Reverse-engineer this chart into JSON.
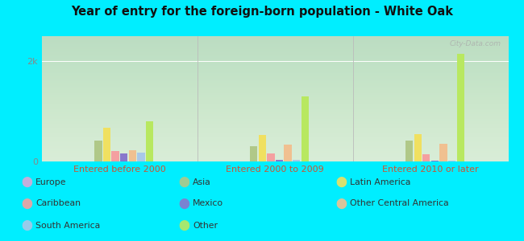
{
  "title": "Year of entry for the foreign-born population - White Oak",
  "background_color": "#00EEFF",
  "plot_bg": "#ddeedd",
  "groups": [
    "Entered before 2000",
    "Entered 2000 to 2009",
    "Entered 2010 or later"
  ],
  "cat_order": [
    "Europe",
    "Asia",
    "Latin America",
    "Caribbean",
    "Mexico",
    "Other Central America",
    "South America",
    "Other"
  ],
  "colors": {
    "Europe": "#d8a8d8",
    "Asia": "#b0c888",
    "Latin America": "#f0e060",
    "Caribbean": "#f4a0a0",
    "Mexico": "#8878cc",
    "Other Central America": "#f0c090",
    "South America": "#a8c8e8",
    "Other": "#b8e860"
  },
  "values": {
    "Entered before 2000": {
      "Europe": 8,
      "Asia": 420,
      "Latin America": 680,
      "Caribbean": 215,
      "Mexico": 160,
      "Other Central America": 220,
      "South America": 175,
      "Other": 800
    },
    "Entered 2000 to 2009": {
      "Europe": 5,
      "Asia": 300,
      "Latin America": 530,
      "Caribbean": 165,
      "Mexico": 28,
      "Other Central America": 330,
      "South America": 28,
      "Other": 1300
    },
    "Entered 2010 or later": {
      "Europe": 5,
      "Asia": 410,
      "Latin America": 540,
      "Caribbean": 148,
      "Mexico": 10,
      "Other Central America": 355,
      "South America": 18,
      "Other": 2150
    }
  },
  "ylim": [
    0,
    2500
  ],
  "yticks": [
    0,
    2000
  ],
  "ytick_labels": [
    "0",
    "2k"
  ],
  "group_label_color": "#cc5533",
  "tick_color": "#888888",
  "title_color": "#111111",
  "watermark": "City-Data.com",
  "legend_layout": [
    [
      [
        "Europe",
        "#d8a8d8"
      ],
      [
        "Asia",
        "#b0c888"
      ],
      [
        "Latin America",
        "#f0e060"
      ]
    ],
    [
      [
        "Caribbean",
        "#f4a0a0"
      ],
      [
        "Mexico",
        "#8878cc"
      ],
      [
        "Other Central America",
        "#f0c090"
      ]
    ],
    [
      [
        "South America",
        "#a8c8e8"
      ],
      [
        "Other",
        "#b8e860"
      ],
      null
    ]
  ]
}
